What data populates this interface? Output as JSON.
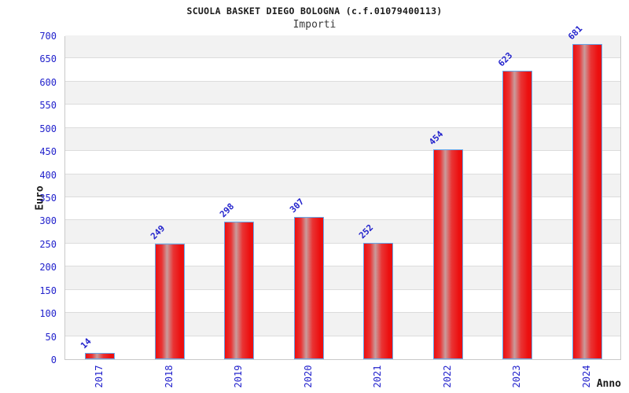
{
  "chart_data": {
    "type": "bar",
    "title": "SCUOLA BASKET DIEGO BOLOGNA (c.f.01079400113)",
    "subtitle": "Importi",
    "xlabel": "Anno",
    "ylabel": "Euro",
    "categories": [
      "2017",
      "2018",
      "2019",
      "2020",
      "2021",
      "2022",
      "2023",
      "2024"
    ],
    "values": [
      14,
      249,
      298,
      307,
      252,
      454,
      623,
      681
    ],
    "ylim": [
      0,
      700
    ],
    "ytick_step": 50,
    "legend": "none",
    "grid": "horizontal",
    "band_fill": "alternating",
    "colors": {
      "bar_main": "#ec0f0f",
      "bar_highlight": "#c99c9c",
      "bar_border": "#64a8ec",
      "tick_label": "#2222cc",
      "value_label": "#2222cc",
      "title": "#1a1a1a",
      "subtitle": "#3a3a3a",
      "axis_label": "#1a1a1a",
      "gridline": "#dcdcdc",
      "band_gray": "#f2f2f2",
      "band_white": "#ffffff",
      "plot_border": "#c9c9c9"
    }
  }
}
